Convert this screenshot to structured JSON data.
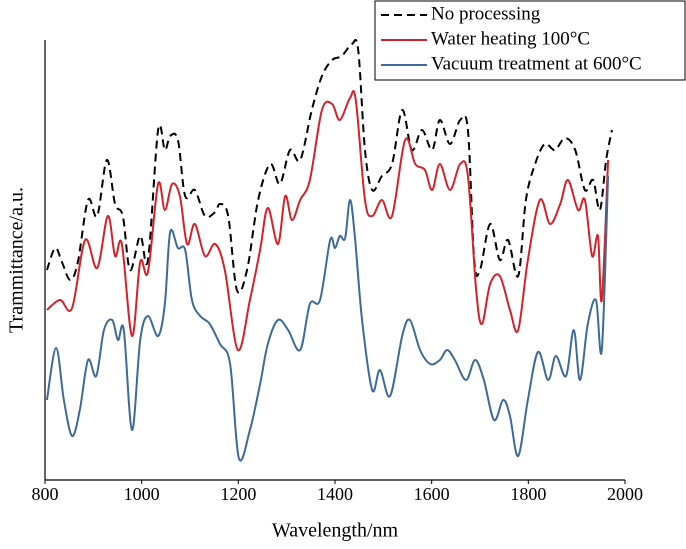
{
  "chart_data": {
    "type": "line",
    "xlabel": "Wavelength/nm",
    "ylabel": "Trammittance/a.u.",
    "xlim": [
      800,
      2000
    ],
    "xticks": [
      800,
      1000,
      1200,
      1400,
      1600,
      1800,
      2000
    ],
    "ylim": [
      0,
      110
    ],
    "legend": "upper right",
    "series": [
      {
        "name": "No processing",
        "color": "#000000",
        "dash": "dashed",
        "x": [
          804,
          821,
          835,
          852,
          868,
          889,
          908,
          928,
          945,
          961,
          976,
          997,
          1013,
          1034,
          1048,
          1059,
          1075,
          1090,
          1110,
          1131,
          1152,
          1162,
          1179,
          1197,
          1218,
          1241,
          1266,
          1286,
          1307,
          1328,
          1352,
          1373,
          1394,
          1414,
          1435,
          1448,
          1462,
          1477,
          1497,
          1518,
          1539,
          1559,
          1580,
          1601,
          1617,
          1638,
          1659,
          1675,
          1688,
          1700,
          1721,
          1741,
          1758,
          1779,
          1795,
          1814,
          1834,
          1855,
          1876,
          1897,
          1917,
          1934,
          1948,
          1961,
          1973
        ],
        "values": [
          52.5,
          58,
          54.5,
          50,
          54.5,
          70,
          66,
          80,
          69,
          66,
          52.5,
          61,
          55,
          87.5,
          82.5,
          86,
          85,
          71,
          72.5,
          66,
          67,
          69,
          66,
          47.5,
          52.5,
          70,
          79,
          74,
          82.5,
          80,
          92.5,
          101,
          105,
          106,
          109,
          107.5,
          82.5,
          72.5,
          76,
          79,
          92.5,
          82.5,
          87.5,
          82.5,
          90,
          84,
          90,
          87.5,
          55,
          52.5,
          64,
          55,
          60,
          51,
          70,
          79,
          84,
          82.5,
          85.5,
          82.5,
          72.5,
          75,
          67.5,
          80,
          87.5
        ]
      },
      {
        "name": "Water heating 100°C",
        "color": "#d4222a",
        "dash": "solid",
        "x": [
          804,
          831,
          856,
          883,
          908,
          930,
          945,
          959,
          980,
          997,
          1013,
          1034,
          1048,
          1063,
          1079,
          1094,
          1110,
          1131,
          1152,
          1172,
          1199,
          1224,
          1245,
          1261,
          1282,
          1297,
          1311,
          1328,
          1348,
          1373,
          1394,
          1410,
          1431,
          1443,
          1462,
          1477,
          1497,
          1518,
          1545,
          1566,
          1586,
          1601,
          1617,
          1638,
          1659,
          1675,
          1692,
          1704,
          1721,
          1741,
          1762,
          1779,
          1799,
          1824,
          1845,
          1866,
          1882,
          1903,
          1917,
          1932,
          1944,
          1952,
          1965
        ],
        "values": [
          42.5,
          45,
          43,
          60,
          53,
          66,
          56,
          59,
          36,
          54.5,
          52,
          74,
          67.5,
          74,
          71,
          59,
          64,
          56,
          59,
          52.5,
          32.5,
          45,
          57.5,
          68,
          59,
          71,
          65,
          70,
          75,
          92.5,
          94,
          90,
          95.5,
          95,
          70,
          66,
          70,
          66,
          85,
          79,
          77.5,
          72.5,
          79,
          72.5,
          79,
          76,
          47.5,
          39,
          49,
          51,
          42.5,
          37.5,
          55,
          70,
          64,
          69,
          75,
          67.5,
          70,
          56,
          61,
          45,
          80
        ]
      },
      {
        "name": "Vacuum treatment at 600°C",
        "color": "#3d6a96",
        "dash": "solid",
        "x": [
          804,
          823,
          839,
          856,
          872,
          889,
          906,
          922,
          939,
          951,
          963,
          980,
          997,
          1013,
          1034,
          1048,
          1059,
          1075,
          1090,
          1104,
          1121,
          1141,
          1162,
          1183,
          1201,
          1224,
          1245,
          1261,
          1282,
          1303,
          1328,
          1348,
          1369,
          1390,
          1400,
          1410,
          1421,
          1431,
          1441,
          1456,
          1477,
          1493,
          1514,
          1539,
          1555,
          1576,
          1597,
          1617,
          1632,
          1648,
          1671,
          1690,
          1708,
          1729,
          1748,
          1762,
          1779,
          1799,
          1820,
          1841,
          1857,
          1878,
          1894,
          1907,
          1923,
          1940,
          1952,
          1965
        ],
        "values": [
          20,
          33,
          20,
          11,
          17.5,
          30,
          26,
          37.5,
          40,
          35,
          37.5,
          12.5,
          35,
          41,
          36,
          44,
          62,
          58,
          57.5,
          45,
          41,
          39,
          34,
          29,
          5.5,
          12.5,
          24,
          34,
          40,
          37.5,
          32.5,
          44,
          45,
          60,
          58,
          61,
          60.5,
          70,
          61,
          40,
          22.5,
          27.5,
          21,
          36,
          40,
          32.5,
          29,
          30,
          32.5,
          30,
          25,
          30,
          25,
          15,
          20,
          16,
          6,
          20,
          32,
          25,
          31,
          26,
          37.5,
          25,
          39,
          45,
          32.5,
          76
        ]
      }
    ]
  }
}
